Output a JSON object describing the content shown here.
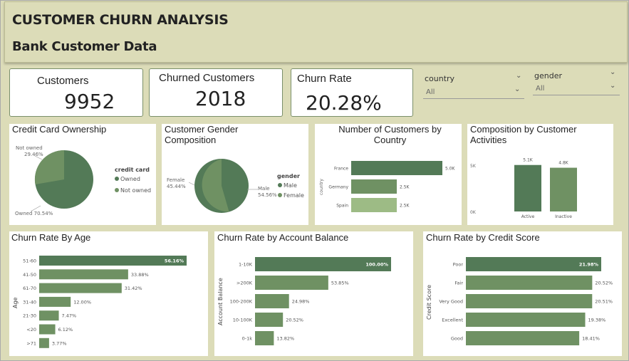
{
  "header": {
    "title": "CUSTOMER CHURN ANALYSIS",
    "subtitle": "Bank Customer Data"
  },
  "kpis": {
    "customers": {
      "label": "Customers",
      "value": "9952"
    },
    "churned": {
      "label": "Churned Customers",
      "value": "2018"
    },
    "churn_rate": {
      "label": "Churn Rate",
      "value": "20.28%"
    }
  },
  "slicers": {
    "country": {
      "label": "country",
      "value": "All"
    },
    "gender": {
      "label": "gender",
      "value": "All"
    }
  },
  "colors": {
    "dark": "#537a57",
    "mid": "#6f9163",
    "light": "#9dbb85"
  },
  "charts": {
    "credit_card": {
      "title": "Credit Card Ownership",
      "legend_title": "credit card",
      "labels": {
        "not_owned": "Not owned",
        "not_owned_pct": "29.46%",
        "owned": "Owned 70.54%"
      },
      "legend": [
        "Owned",
        "Not owned"
      ]
    },
    "gender": {
      "title": "Customer Gender Composition",
      "legend_title": "gender",
      "labels": {
        "female": "Female",
        "female_pct": "45.44%",
        "male": "Male",
        "male_pct": "54.56%"
      },
      "legend": [
        "Male",
        "Female"
      ]
    },
    "country": {
      "title": "Number of Customers by Country",
      "axis_label": "country"
    },
    "activity": {
      "title": "Composition by Customer Activities"
    },
    "age": {
      "title": "Churn Rate By Age",
      "axis_label": "Age"
    },
    "balance": {
      "title": "Churn Rate by Account Balance",
      "axis_label": "Account Balance"
    },
    "credit_score": {
      "title": "Churn Rate by Credit Score",
      "axis_label": "Credit Score"
    }
  },
  "chart_data": [
    {
      "type": "pie",
      "title": "Credit Card Ownership",
      "categories": [
        "Owned",
        "Not owned"
      ],
      "values": [
        70.54,
        29.46
      ]
    },
    {
      "type": "pie",
      "title": "Customer Gender Composition",
      "categories": [
        "Male",
        "Female"
      ],
      "values": [
        54.56,
        45.44
      ]
    },
    {
      "type": "bar",
      "title": "Number of Customers by Country",
      "categories": [
        "France",
        "Germany",
        "Spain"
      ],
      "values": [
        5000,
        2500,
        2500
      ],
      "value_labels": [
        "5.0K",
        "2.5K",
        "2.5K"
      ],
      "ylabel": "country"
    },
    {
      "type": "bar",
      "title": "Composition by Customer Activities",
      "categories": [
        "Active",
        "Inactive"
      ],
      "values": [
        5100,
        4800
      ],
      "value_labels": [
        "5.1K",
        "4.8K"
      ],
      "yticks": [
        "5K",
        "0K"
      ],
      "ylim": [
        0,
        5500
      ]
    },
    {
      "type": "bar",
      "title": "Churn Rate By Age",
      "categories": [
        "51-60",
        "41-50",
        "61-70",
        "31-40",
        "21-30",
        "<20",
        ">71"
      ],
      "values": [
        56.16,
        33.88,
        31.42,
        12.0,
        7.47,
        6.12,
        3.77
      ],
      "value_labels": [
        "56.16%",
        "33.88%",
        "31.42%",
        "12.00%",
        "7.47%",
        "6.12%",
        "3.77%"
      ],
      "ylabel": "Age"
    },
    {
      "type": "bar",
      "title": "Churn Rate by Account Balance",
      "categories": [
        "1-10K",
        ">200K",
        "100-200K",
        "10-100K",
        "0-1k"
      ],
      "values": [
        100.0,
        53.85,
        24.98,
        20.52,
        13.82
      ],
      "value_labels": [
        "100.00%",
        "53.85%",
        "24.98%",
        "20.52%",
        "13.82%"
      ],
      "ylabel": "Account Balance"
    },
    {
      "type": "bar",
      "title": "Churn Rate by Credit Score",
      "categories": [
        "Poor",
        "Fair",
        "Very Good",
        "Excellent",
        "Good"
      ],
      "values": [
        21.98,
        20.52,
        20.51,
        19.38,
        18.41
      ],
      "value_labels": [
        "21.98%",
        "20.52%",
        "20.51%",
        "19.38%",
        "18.41%"
      ],
      "ylabel": "Credit Score"
    }
  ]
}
